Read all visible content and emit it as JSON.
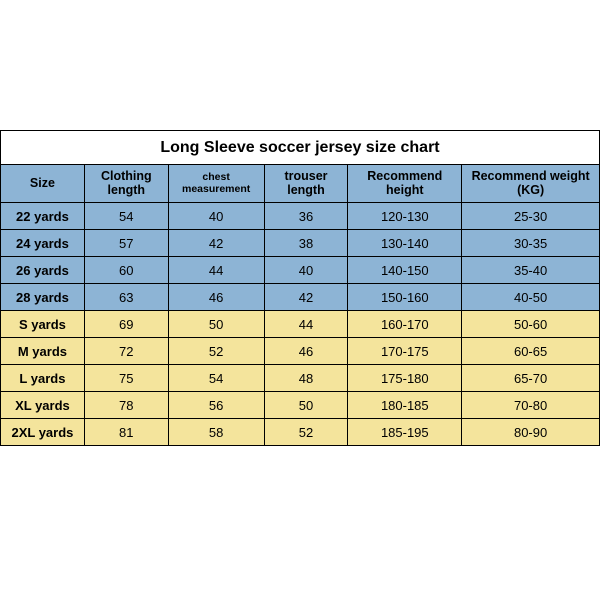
{
  "title": "Long Sleeve soccer jersey size chart",
  "columns": [
    "Size",
    "Clothing length",
    "chest measurement",
    "trouser length",
    "Recommend height",
    "Recommend weight (KG)"
  ],
  "col_widths_pct": [
    14,
    14,
    16,
    14,
    19,
    23
  ],
  "header_bg": "#8db4d5",
  "colors": {
    "blue": "#8db4d5",
    "yellow": "#f4e49c"
  },
  "border_color": "#000000",
  "title_fontsize": 16,
  "header_fontsize": 12.5,
  "cell_fontsize": 13,
  "rows": [
    {
      "color": "blue",
      "cells": [
        "22 yards",
        "54",
        "40",
        "36",
        "120-130",
        "25-30"
      ]
    },
    {
      "color": "blue",
      "cells": [
        "24 yards",
        "57",
        "42",
        "38",
        "130-140",
        "30-35"
      ]
    },
    {
      "color": "blue",
      "cells": [
        "26 yards",
        "60",
        "44",
        "40",
        "140-150",
        "35-40"
      ]
    },
    {
      "color": "blue",
      "cells": [
        "28 yards",
        "63",
        "46",
        "42",
        "150-160",
        "40-50"
      ]
    },
    {
      "color": "yellow",
      "cells": [
        "S yards",
        "69",
        "50",
        "44",
        "160-170",
        "50-60"
      ]
    },
    {
      "color": "yellow",
      "cells": [
        "M yards",
        "72",
        "52",
        "46",
        "170-175",
        "60-65"
      ]
    },
    {
      "color": "yellow",
      "cells": [
        "L yards",
        "75",
        "54",
        "48",
        "175-180",
        "65-70"
      ]
    },
    {
      "color": "yellow",
      "cells": [
        "XL yards",
        "78",
        "56",
        "50",
        "180-185",
        "70-80"
      ]
    },
    {
      "color": "yellow",
      "cells": [
        "2XL yards",
        "81",
        "58",
        "52",
        "185-195",
        "80-90"
      ]
    }
  ]
}
